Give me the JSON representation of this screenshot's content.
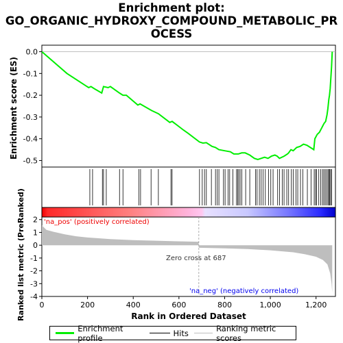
{
  "title_lines": [
    "Enrichment plot:",
    "GO_ORGANIC_HYDROXY_COMPOUND_METABOLIC_PR",
    "OCESS"
  ],
  "colors": {
    "es_line": "#00ee00",
    "hits": "#000000",
    "metric_fill": "#bebebe",
    "pos_label": "#ee0000",
    "neg_label": "#0000ee",
    "zero_cross_line": "#999999"
  },
  "chart_data": [
    {
      "type": "line",
      "name": "enrichment-profile",
      "ylabel": "Enrichment score (ES)",
      "ylim": [
        -0.53,
        0.03
      ],
      "yticks": [
        0.0,
        -0.1,
        -0.2,
        -0.3,
        -0.4,
        -0.5
      ],
      "ytick_labels": [
        "0.0",
        "-0.1",
        "-0.2",
        "-0.3",
        "-0.4",
        "-0.5"
      ],
      "xlim": [
        0,
        1285
      ],
      "points": [
        [
          0,
          0.0
        ],
        [
          110,
          -0.1
        ],
        [
          205,
          -0.165
        ],
        [
          215,
          -0.16
        ],
        [
          230,
          -0.17
        ],
        [
          262,
          -0.19
        ],
        [
          270,
          -0.16
        ],
        [
          290,
          -0.165
        ],
        [
          300,
          -0.16
        ],
        [
          340,
          -0.19
        ],
        [
          355,
          -0.2
        ],
        [
          370,
          -0.2
        ],
        [
          420,
          -0.245
        ],
        [
          430,
          -0.24
        ],
        [
          480,
          -0.27
        ],
        [
          500,
          -0.28
        ],
        [
          510,
          -0.285
        ],
        [
          560,
          -0.325
        ],
        [
          570,
          -0.32
        ],
        [
          620,
          -0.36
        ],
        [
          640,
          -0.375
        ],
        [
          690,
          -0.415
        ],
        [
          705,
          -0.42
        ],
        [
          720,
          -0.418
        ],
        [
          745,
          -0.435
        ],
        [
          760,
          -0.44
        ],
        [
          775,
          -0.45
        ],
        [
          800,
          -0.455
        ],
        [
          825,
          -0.46
        ],
        [
          840,
          -0.47
        ],
        [
          860,
          -0.47
        ],
        [
          875,
          -0.465
        ],
        [
          890,
          -0.465
        ],
        [
          910,
          -0.475
        ],
        [
          930,
          -0.49
        ],
        [
          945,
          -0.495
        ],
        [
          960,
          -0.49
        ],
        [
          975,
          -0.485
        ],
        [
          990,
          -0.49
        ],
        [
          1005,
          -0.48
        ],
        [
          1020,
          -0.475
        ],
        [
          1030,
          -0.48
        ],
        [
          1040,
          -0.49
        ],
        [
          1060,
          -0.48
        ],
        [
          1075,
          -0.47
        ],
        [
          1080,
          -0.465
        ],
        [
          1090,
          -0.45
        ],
        [
          1100,
          -0.455
        ],
        [
          1115,
          -0.44
        ],
        [
          1130,
          -0.435
        ],
        [
          1145,
          -0.425
        ],
        [
          1160,
          -0.43
        ],
        [
          1175,
          -0.44
        ],
        [
          1190,
          -0.45
        ],
        [
          1195,
          -0.4
        ],
        [
          1205,
          -0.38
        ],
        [
          1215,
          -0.37
        ],
        [
          1225,
          -0.35
        ],
        [
          1235,
          -0.33
        ],
        [
          1242,
          -0.32
        ],
        [
          1248,
          -0.29
        ],
        [
          1252,
          -0.26
        ],
        [
          1256,
          -0.22
        ],
        [
          1259,
          -0.2
        ],
        [
          1262,
          -0.17
        ],
        [
          1265,
          -0.12
        ],
        [
          1268,
          -0.07
        ],
        [
          1271,
          0.0
        ]
      ]
    },
    {
      "type": "hits",
      "name": "hits",
      "positions": [
        210,
        222,
        265,
        270,
        282,
        340,
        355,
        425,
        432,
        478,
        510,
        565,
        570,
        690,
        702,
        712,
        720,
        742,
        760,
        768,
        775,
        795,
        802,
        815,
        822,
        836,
        852,
        857,
        862,
        868,
        875,
        892,
        910,
        935,
        942,
        952,
        960,
        968,
        978,
        992,
        1002,
        1012,
        1032,
        1040,
        1052,
        1060,
        1072,
        1080,
        1092,
        1100,
        1112,
        1120,
        1132,
        1142,
        1162,
        1178,
        1192,
        1198,
        1202,
        1212,
        1220,
        1228,
        1234,
        1240,
        1246,
        1252,
        1256,
        1260,
        1264,
        1268
      ]
    },
    {
      "type": "area",
      "name": "ranking-metric-scores",
      "xlabel": "Rank in Ordered Dataset",
      "ylabel": "Ranked list metric (PreRanked)",
      "ylim": [
        -4,
        2.2
      ],
      "yticks": [
        2,
        1,
        0,
        -1,
        -2,
        -3,
        -4
      ],
      "ytick_labels": [
        "2",
        "1",
        "0",
        "-1",
        "-2",
        "-3",
        "-4"
      ],
      "xlim": [
        0,
        1285
      ],
      "xticks": [
        0,
        200,
        400,
        600,
        800,
        1000,
        1200
      ],
      "xtick_labels": [
        "0",
        "200",
        "400",
        "600",
        "800",
        "1,000",
        "1,200"
      ],
      "points": [
        [
          0,
          1.55
        ],
        [
          20,
          1.2
        ],
        [
          50,
          1.05
        ],
        [
          100,
          0.85
        ],
        [
          150,
          0.7
        ],
        [
          200,
          0.6
        ],
        [
          300,
          0.48
        ],
        [
          400,
          0.4
        ],
        [
          500,
          0.35
        ],
        [
          600,
          0.3
        ],
        [
          686,
          0.27
        ],
        [
          687,
          -0.2
        ],
        [
          800,
          -0.25
        ],
        [
          900,
          -0.3
        ],
        [
          1000,
          -0.4
        ],
        [
          1100,
          -0.55
        ],
        [
          1150,
          -0.7
        ],
        [
          1200,
          -0.9
        ],
        [
          1230,
          -1.15
        ],
        [
          1250,
          -1.5
        ],
        [
          1262,
          -2.2
        ],
        [
          1268,
          -3.0
        ],
        [
          1271,
          -3.7
        ]
      ],
      "zero_cross": 687,
      "zero_cross_label": "Zero cross at 687",
      "pos_label": "'na_pos' (positively correlated)",
      "neg_label": "'na_neg' (negatively correlated)"
    }
  ],
  "legend": [
    {
      "label": "Enrichment profile",
      "color": "#00ee00"
    },
    {
      "label": "Hits",
      "color": "#000000"
    },
    {
      "label": "Ranking metric scores",
      "color": "#bebebe"
    }
  ]
}
